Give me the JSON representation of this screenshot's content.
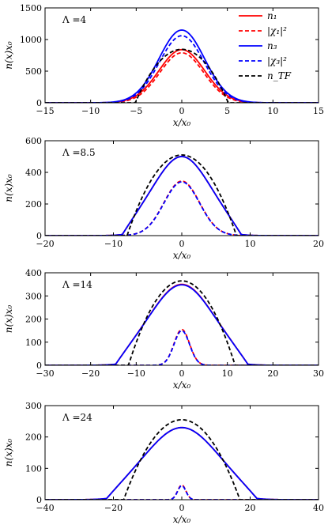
{
  "chart_data": [
    {
      "type": "line",
      "label": "Λ =4",
      "xlabel": "x/x₀",
      "ylabel": "n(x)x₀",
      "xlim": [
        -15,
        15
      ],
      "ylim": [
        0,
        1500
      ],
      "xticks": [
        -15,
        -10,
        -5,
        0,
        5,
        10,
        15
      ],
      "yticks": [
        0,
        500,
        1000,
        1500
      ],
      "series": [
        {
          "name": "n₁",
          "color": "#ff0000",
          "dash": "solid",
          "profile": "gauss",
          "amp": 840,
          "sigma": 2.5
        },
        {
          "name": "|χ₁|²",
          "color": "#ff0000",
          "dash": "dashed",
          "profile": "gauss",
          "amp": 790,
          "sigma": 2.4
        },
        {
          "name": "n₃",
          "color": "#0000ff",
          "dash": "solid",
          "profile": "gauss",
          "amp": 1150,
          "sigma": 2.5
        },
        {
          "name": "|χ₃|²",
          "color": "#0000ff",
          "dash": "dashed",
          "profile": "gauss",
          "amp": 1060,
          "sigma": 2.45
        },
        {
          "name": "n_TF",
          "color": "#000000",
          "dash": "dashed",
          "profile": "tf",
          "amp": 845,
          "R": 5.1
        }
      ],
      "legend": {
        "position": "top-right",
        "entries": [
          "n₁",
          "|χ₁|²",
          "n₃",
          "|χ₃|²",
          "n_TF"
        ]
      }
    },
    {
      "type": "line",
      "label": "Λ =8.5",
      "xlabel": "x/x₀",
      "ylabel": "n(x)x₀",
      "xlim": [
        -20,
        20
      ],
      "ylim": [
        0,
        600
      ],
      "xticks": [
        -20,
        -10,
        0,
        10,
        20
      ],
      "yticks": [
        0,
        200,
        400,
        600
      ],
      "series": [
        {
          "name": "n₁",
          "color": "#ff0000",
          "dash": "solid",
          "profile": "mixed",
          "amp": 500,
          "R": 8.7,
          "sigma": 3.3
        },
        {
          "name": "|χ₁|²",
          "color": "#ff0000",
          "dash": "dashed",
          "profile": "gauss",
          "amp": 345,
          "sigma": 2.6
        },
        {
          "name": "n₃",
          "color": "#0000ff",
          "dash": "solid",
          "profile": "mixed",
          "amp": 500,
          "R": 8.7,
          "sigma": 3.3
        },
        {
          "name": "|χ₃|²",
          "color": "#0000ff",
          "dash": "dashed",
          "profile": "gauss",
          "amp": 340,
          "sigma": 2.6
        },
        {
          "name": "n_TF",
          "color": "#000000",
          "dash": "dashed",
          "profile": "tf",
          "amp": 510,
          "R": 8.0
        }
      ]
    },
    {
      "type": "line",
      "label": "Λ =14",
      "xlabel": "x/x₀",
      "ylabel": "n(x)x₀",
      "xlim": [
        -30,
        30
      ],
      "ylim": [
        0,
        400
      ],
      "xticks": [
        -30,
        -20,
        -10,
        0,
        10,
        20,
        30
      ],
      "yticks": [
        0,
        100,
        200,
        300,
        400
      ],
      "series": [
        {
          "name": "n₁",
          "color": "#ff0000",
          "dash": "solid",
          "profile": "mixed",
          "amp": 350,
          "R": 14.5,
          "sigma": 5.5
        },
        {
          "name": "|χ₁|²",
          "color": "#ff0000",
          "dash": "dashed",
          "profile": "gauss",
          "amp": 155,
          "sigma": 1.7
        },
        {
          "name": "n₃",
          "color": "#0000ff",
          "dash": "solid",
          "profile": "mixed",
          "amp": 348,
          "R": 14.5,
          "sigma": 5.5
        },
        {
          "name": "|χ₃|²",
          "color": "#0000ff",
          "dash": "dashed",
          "profile": "gauss",
          "amp": 150,
          "sigma": 1.7
        },
        {
          "name": "n_TF",
          "color": "#000000",
          "dash": "dashed",
          "profile": "tf",
          "amp": 365,
          "R": 11.7
        }
      ]
    },
    {
      "type": "line",
      "label": "Λ =24",
      "xlabel": "x/x₀",
      "ylabel": "n(x)x₀",
      "xlim": [
        -40,
        40
      ],
      "ylim": [
        0,
        300
      ],
      "xticks": [
        -40,
        -20,
        0,
        20,
        40
      ],
      "yticks": [
        0,
        100,
        200,
        300
      ],
      "series": [
        {
          "name": "n₁",
          "color": "#ff0000",
          "dash": "solid",
          "profile": "mixed",
          "amp": 230,
          "R": 22,
          "sigma": 8.5
        },
        {
          "name": "|χ₁|²",
          "color": "#ff0000",
          "dash": "dashed",
          "profile": "gauss",
          "amp": 47,
          "sigma": 1.2
        },
        {
          "name": "n₃",
          "color": "#0000ff",
          "dash": "solid",
          "profile": "mixed",
          "amp": 230,
          "R": 22,
          "sigma": 8.5
        },
        {
          "name": "|χ₃|²",
          "color": "#0000ff",
          "dash": "dashed",
          "profile": "gauss",
          "amp": 45,
          "sigma": 1.2
        },
        {
          "name": "n_TF",
          "color": "#000000",
          "dash": "dashed",
          "profile": "tf",
          "amp": 255,
          "R": 17
        }
      ]
    }
  ]
}
